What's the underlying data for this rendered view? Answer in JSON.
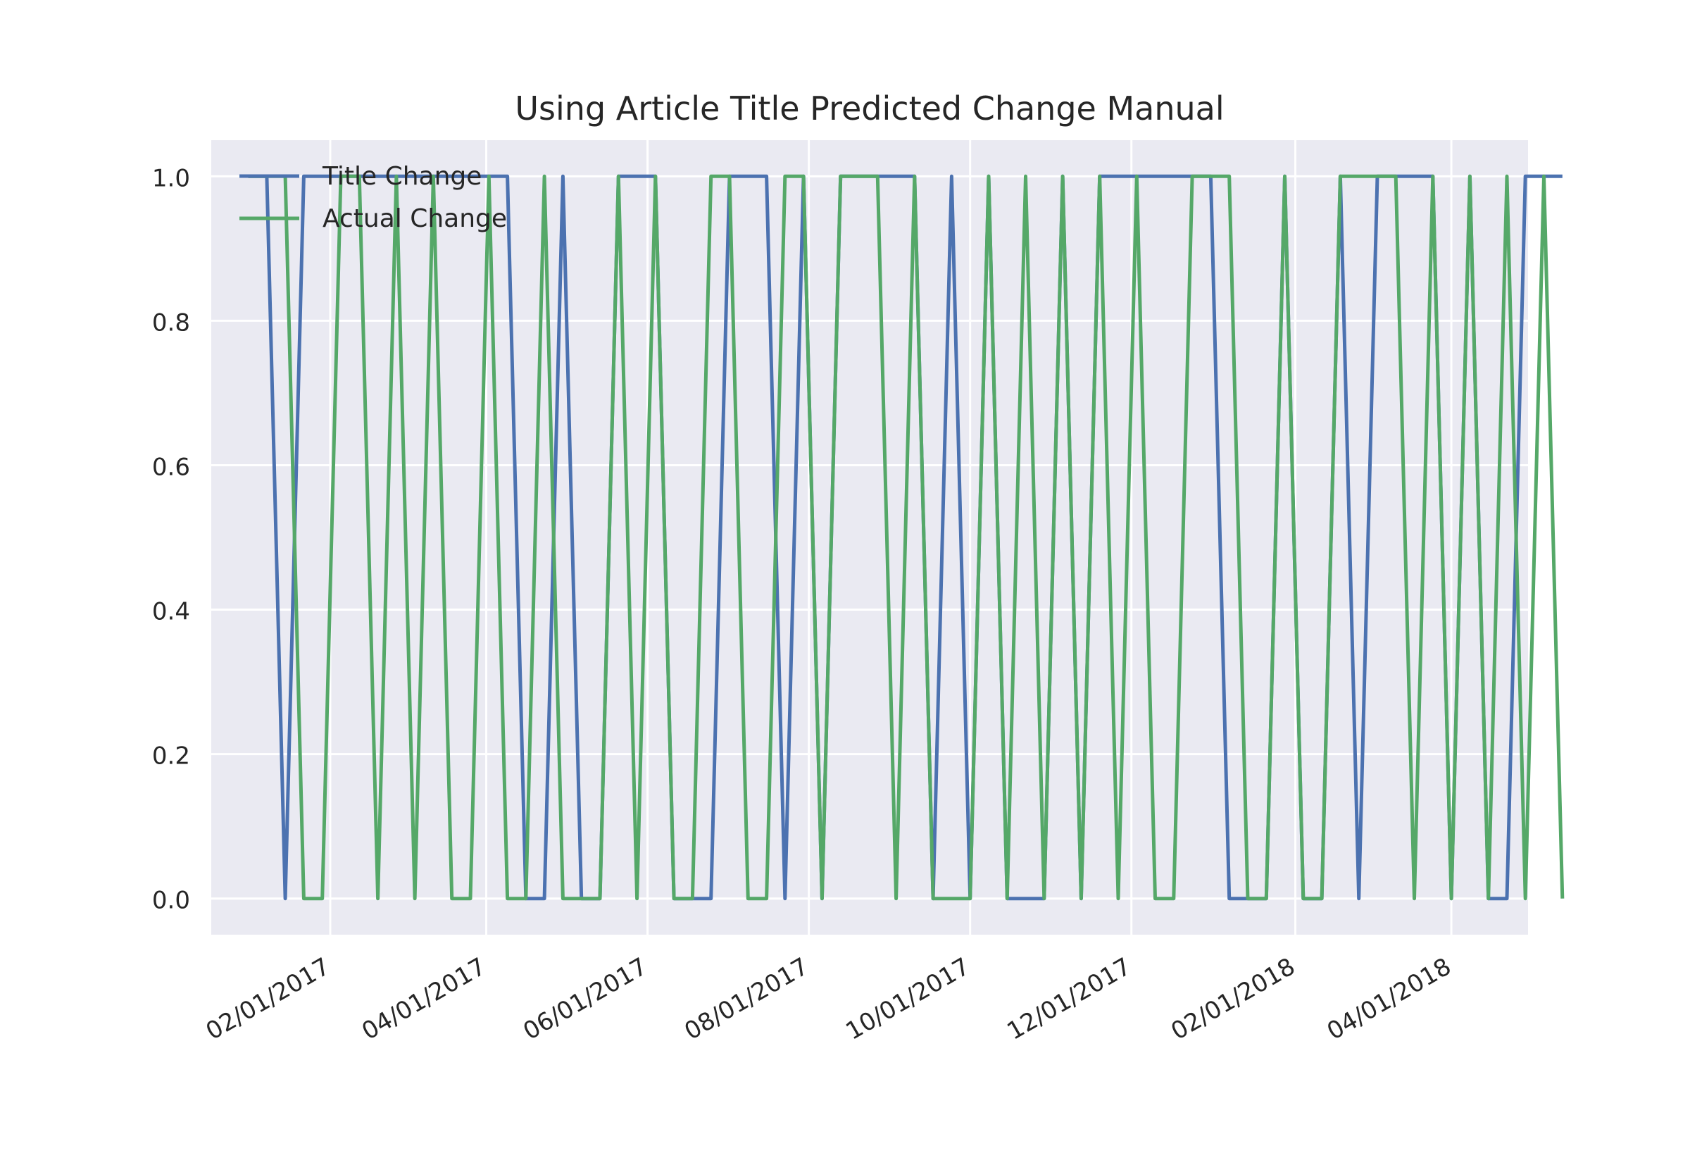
{
  "chart_data": {
    "type": "line",
    "title": "Using Article Title Predicted Change Manual",
    "xlabel": "",
    "ylabel": "",
    "x_axis_type": "date",
    "xlim": [
      "2016-12-18",
      "2018-04-30"
    ],
    "ylim": [
      -0.05,
      1.05
    ],
    "yticks": [
      0.0,
      0.2,
      0.4,
      0.6,
      0.8,
      1.0
    ],
    "ytick_labels": [
      "0.0",
      "0.2",
      "0.4",
      "0.6",
      "0.8",
      "1.0"
    ],
    "xticks": [
      "2017-02-01",
      "2017-04-01",
      "2017-06-01",
      "2017-08-01",
      "2017-10-01",
      "2017-12-01",
      "2018-02-01",
      "2018-04-01"
    ],
    "xtick_labels": [
      "02/01/2017",
      "04/01/2017",
      "06/01/2017",
      "08/01/2017",
      "10/01/2017",
      "12/01/2017",
      "02/01/2018",
      "04/01/2018"
    ],
    "grid": true,
    "legend_position": "upper left",
    "background_color": "#eaeaf2",
    "series": [
      {
        "name": "Title Change",
        "color": "#4c72b0",
        "points": [
          [
            "2017-01-01",
            1
          ],
          [
            "2017-01-08",
            1
          ],
          [
            "2017-01-15",
            0
          ],
          [
            "2017-01-22",
            1
          ],
          [
            "2017-01-29",
            1
          ],
          [
            "2017-02-05",
            1
          ],
          [
            "2017-02-12",
            1
          ],
          [
            "2017-02-19",
            1
          ],
          [
            "2017-02-26",
            1
          ],
          [
            "2017-03-05",
            1
          ],
          [
            "2017-03-12",
            1
          ],
          [
            "2017-03-19",
            1
          ],
          [
            "2017-03-26",
            1
          ],
          [
            "2017-04-02",
            1
          ],
          [
            "2017-04-09",
            1
          ],
          [
            "2017-04-16",
            0
          ],
          [
            "2017-04-23",
            0
          ],
          [
            "2017-04-30",
            1
          ],
          [
            "2017-05-07",
            0
          ],
          [
            "2017-05-14",
            0
          ],
          [
            "2017-05-21",
            1
          ],
          [
            "2017-05-28",
            1
          ],
          [
            "2017-06-04",
            1
          ],
          [
            "2017-06-11",
            0
          ],
          [
            "2017-06-18",
            0
          ],
          [
            "2017-06-25",
            0
          ],
          [
            "2017-07-02",
            1
          ],
          [
            "2017-07-09",
            1
          ],
          [
            "2017-07-16",
            1
          ],
          [
            "2017-07-23",
            0
          ],
          [
            "2017-07-30",
            1
          ],
          [
            "2017-08-06",
            0
          ],
          [
            "2017-08-13",
            1
          ],
          [
            "2017-08-20",
            1
          ],
          [
            "2017-08-27",
            1
          ],
          [
            "2017-09-03",
            1
          ],
          [
            "2017-09-10",
            1
          ],
          [
            "2017-09-17",
            0
          ],
          [
            "2017-09-24",
            1
          ],
          [
            "2017-10-01",
            0
          ],
          [
            "2017-10-08",
            1
          ],
          [
            "2017-10-15",
            0
          ],
          [
            "2017-10-22",
            0
          ],
          [
            "2017-10-29",
            0
          ],
          [
            "2017-11-05",
            1
          ],
          [
            "2017-11-12",
            0
          ],
          [
            "2017-11-19",
            1
          ],
          [
            "2017-11-26",
            1
          ],
          [
            "2017-12-03",
            1
          ],
          [
            "2017-12-10",
            1
          ],
          [
            "2017-12-17",
            1
          ],
          [
            "2017-12-24",
            1
          ],
          [
            "2017-12-31",
            1
          ],
          [
            "2018-01-07",
            0
          ],
          [
            "2018-01-14",
            0
          ],
          [
            "2018-01-21",
            0
          ],
          [
            "2018-01-28",
            1
          ],
          [
            "2018-02-04",
            0
          ],
          [
            "2018-02-11",
            0
          ],
          [
            "2018-02-18",
            1
          ],
          [
            "2018-02-25",
            0
          ],
          [
            "2018-03-04",
            1
          ],
          [
            "2018-03-11",
            1
          ],
          [
            "2018-03-18",
            1
          ],
          [
            "2018-03-25",
            1
          ],
          [
            "2018-04-01",
            0
          ],
          [
            "2018-04-08",
            1
          ],
          [
            "2018-04-15",
            0
          ],
          [
            "2018-04-22",
            0
          ],
          [
            "2018-04-29",
            1
          ],
          [
            "2018-05-06",
            1
          ],
          [
            "2018-05-13",
            1
          ]
        ]
      },
      {
        "name": "Actual Change",
        "color": "#55a868",
        "points": [
          [
            "2017-01-01",
            1
          ],
          [
            "2017-01-08",
            1
          ],
          [
            "2017-01-15",
            1
          ],
          [
            "2017-01-22",
            0
          ],
          [
            "2017-01-29",
            0
          ],
          [
            "2017-02-05",
            1
          ],
          [
            "2017-02-12",
            1
          ],
          [
            "2017-02-19",
            0
          ],
          [
            "2017-02-26",
            1
          ],
          [
            "2017-03-05",
            0
          ],
          [
            "2017-03-12",
            1
          ],
          [
            "2017-03-19",
            0
          ],
          [
            "2017-03-26",
            0
          ],
          [
            "2017-04-02",
            1
          ],
          [
            "2017-04-09",
            0
          ],
          [
            "2017-04-16",
            0
          ],
          [
            "2017-04-23",
            1
          ],
          [
            "2017-04-30",
            0
          ],
          [
            "2017-05-07",
            0
          ],
          [
            "2017-05-14",
            0
          ],
          [
            "2017-05-21",
            1
          ],
          [
            "2017-05-28",
            0
          ],
          [
            "2017-06-04",
            1
          ],
          [
            "2017-06-11",
            0
          ],
          [
            "2017-06-18",
            0
          ],
          [
            "2017-06-25",
            1
          ],
          [
            "2017-07-02",
            1
          ],
          [
            "2017-07-09",
            0
          ],
          [
            "2017-07-16",
            0
          ],
          [
            "2017-07-23",
            1
          ],
          [
            "2017-07-30",
            1
          ],
          [
            "2017-08-06",
            0
          ],
          [
            "2017-08-13",
            1
          ],
          [
            "2017-08-20",
            1
          ],
          [
            "2017-08-27",
            1
          ],
          [
            "2017-09-03",
            0
          ],
          [
            "2017-09-10",
            1
          ],
          [
            "2017-09-17",
            0
          ],
          [
            "2017-09-24",
            0
          ],
          [
            "2017-10-01",
            0
          ],
          [
            "2017-10-08",
            1
          ],
          [
            "2017-10-15",
            0
          ],
          [
            "2017-10-22",
            1
          ],
          [
            "2017-10-29",
            0
          ],
          [
            "2017-11-05",
            1
          ],
          [
            "2017-11-12",
            0
          ],
          [
            "2017-11-19",
            1
          ],
          [
            "2017-11-26",
            0
          ],
          [
            "2017-12-03",
            1
          ],
          [
            "2017-12-10",
            0
          ],
          [
            "2017-12-17",
            0
          ],
          [
            "2017-12-24",
            1
          ],
          [
            "2017-12-31",
            1
          ],
          [
            "2018-01-07",
            1
          ],
          [
            "2018-01-14",
            0
          ],
          [
            "2018-01-21",
            0
          ],
          [
            "2018-01-28",
            1
          ],
          [
            "2018-02-04",
            0
          ],
          [
            "2018-02-11",
            0
          ],
          [
            "2018-02-18",
            1
          ],
          [
            "2018-02-25",
            1
          ],
          [
            "2018-03-04",
            1
          ],
          [
            "2018-03-11",
            1
          ],
          [
            "2018-03-18",
            0
          ],
          [
            "2018-03-25",
            1
          ],
          [
            "2018-04-01",
            0
          ],
          [
            "2018-04-08",
            1
          ],
          [
            "2018-04-15",
            0
          ],
          [
            "2018-04-22",
            1
          ],
          [
            "2018-04-29",
            0
          ],
          [
            "2018-05-06",
            1
          ],
          [
            "2018-05-13",
            0
          ]
        ]
      }
    ]
  }
}
